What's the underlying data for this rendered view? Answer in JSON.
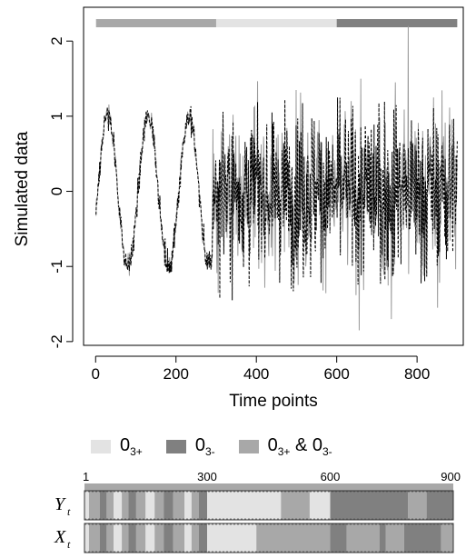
{
  "chart_data": [
    {
      "type": "line",
      "xlabel": "Time points",
      "ylabel": "Simulated data",
      "xlim": [
        -30,
        915
      ],
      "ylim": [
        -2.05,
        2.45
      ],
      "xticks": [
        "0",
        "200",
        "400",
        "600",
        "800"
      ],
      "xtick_values": [
        0,
        200,
        400,
        600,
        800
      ],
      "yticks": [
        "-2",
        "-1",
        "0",
        "1",
        "2"
      ],
      "ytick_values": [
        -2,
        -1,
        0,
        1,
        2
      ],
      "series": [
        {
          "style": "solid",
          "color": "#9a9a9a",
          "description_values": {
            "regime_1_amplitude": 1.1,
            "regime_1_period": 100,
            "noisy_range": [
              -1.8,
              2.2
            ]
          }
        },
        {
          "style": "dashed",
          "color": "#000000"
        }
      ],
      "regime_bar": [
        {
          "start": 1,
          "end": 300,
          "color": "#a8a8a8"
        },
        {
          "start": 300,
          "end": 600,
          "color": "#e3e3e3"
        },
        {
          "start": 600,
          "end": 900,
          "color": "#808080"
        }
      ]
    },
    {
      "type": "heatmap",
      "tick_labels": [
        "1",
        "300",
        "600",
        "900"
      ],
      "tick_values": [
        1,
        300,
        600,
        900
      ],
      "rows": [
        {
          "label": "Y",
          "subscript": "t",
          "segments": [
            {
              "start": 1,
              "end": 12,
              "color": "#e3e3e3"
            },
            {
              "start": 12,
              "end": 38,
              "color": "#a8a8a8"
            },
            {
              "start": 38,
              "end": 55,
              "color": "#808080"
            },
            {
              "start": 55,
              "end": 72,
              "color": "#a8a8a8"
            },
            {
              "start": 72,
              "end": 92,
              "color": "#e3e3e3"
            },
            {
              "start": 92,
              "end": 108,
              "color": "#a8a8a8"
            },
            {
              "start": 108,
              "end": 127,
              "color": "#808080"
            },
            {
              "start": 127,
              "end": 150,
              "color": "#a8a8a8"
            },
            {
              "start": 150,
              "end": 172,
              "color": "#e3e3e3"
            },
            {
              "start": 172,
              "end": 194,
              "color": "#a8a8a8"
            },
            {
              "start": 194,
              "end": 217,
              "color": "#808080"
            },
            {
              "start": 217,
              "end": 245,
              "color": "#a8a8a8"
            },
            {
              "start": 245,
              "end": 262,
              "color": "#e3e3e3"
            },
            {
              "start": 262,
              "end": 280,
              "color": "#a8a8a8"
            },
            {
              "start": 280,
              "end": 300,
              "color": "#808080"
            },
            {
              "start": 300,
              "end": 480,
              "color": "#e3e3e3"
            },
            {
              "start": 480,
              "end": 550,
              "color": "#a8a8a8"
            },
            {
              "start": 550,
              "end": 600,
              "color": "#e3e3e3"
            },
            {
              "start": 600,
              "end": 790,
              "color": "#808080"
            },
            {
              "start": 790,
              "end": 835,
              "color": "#a8a8a8"
            },
            {
              "start": 835,
              "end": 900,
              "color": "#808080"
            }
          ]
        },
        {
          "label": "X",
          "subscript": "t",
          "segments": [
            {
              "start": 1,
              "end": 12,
              "color": "#e3e3e3"
            },
            {
              "start": 12,
              "end": 38,
              "color": "#a8a8a8"
            },
            {
              "start": 38,
              "end": 55,
              "color": "#808080"
            },
            {
              "start": 55,
              "end": 72,
              "color": "#a8a8a8"
            },
            {
              "start": 72,
              "end": 92,
              "color": "#e3e3e3"
            },
            {
              "start": 92,
              "end": 108,
              "color": "#a8a8a8"
            },
            {
              "start": 108,
              "end": 127,
              "color": "#808080"
            },
            {
              "start": 127,
              "end": 150,
              "color": "#a8a8a8"
            },
            {
              "start": 150,
              "end": 172,
              "color": "#e3e3e3"
            },
            {
              "start": 172,
              "end": 194,
              "color": "#a8a8a8"
            },
            {
              "start": 194,
              "end": 217,
              "color": "#808080"
            },
            {
              "start": 217,
              "end": 245,
              "color": "#a8a8a8"
            },
            {
              "start": 245,
              "end": 262,
              "color": "#e3e3e3"
            },
            {
              "start": 262,
              "end": 280,
              "color": "#a8a8a8"
            },
            {
              "start": 280,
              "end": 300,
              "color": "#808080"
            },
            {
              "start": 300,
              "end": 420,
              "color": "#e3e3e3"
            },
            {
              "start": 420,
              "end": 600,
              "color": "#a8a8a8"
            },
            {
              "start": 600,
              "end": 640,
              "color": "#808080"
            },
            {
              "start": 640,
              "end": 720,
              "color": "#a8a8a8"
            },
            {
              "start": 720,
              "end": 735,
              "color": "#808080"
            },
            {
              "start": 735,
              "end": 780,
              "color": "#a8a8a8"
            },
            {
              "start": 780,
              "end": 870,
              "color": "#808080"
            },
            {
              "start": 870,
              "end": 900,
              "color": "#a8a8a8"
            }
          ]
        }
      ]
    }
  ],
  "legend": [
    {
      "main": "0",
      "sub": "3+",
      "tail": "",
      "tail_main": "",
      "tail_sub": "",
      "color": "#e3e3e3"
    },
    {
      "main": "0",
      "sub": "3-",
      "tail": "",
      "tail_main": "",
      "tail_sub": "",
      "color": "#808080"
    },
    {
      "main": "0",
      "sub": "3+",
      "tail": " & ",
      "tail_main": "0",
      "tail_sub": "3-",
      "color": "#a8a8a8"
    }
  ]
}
